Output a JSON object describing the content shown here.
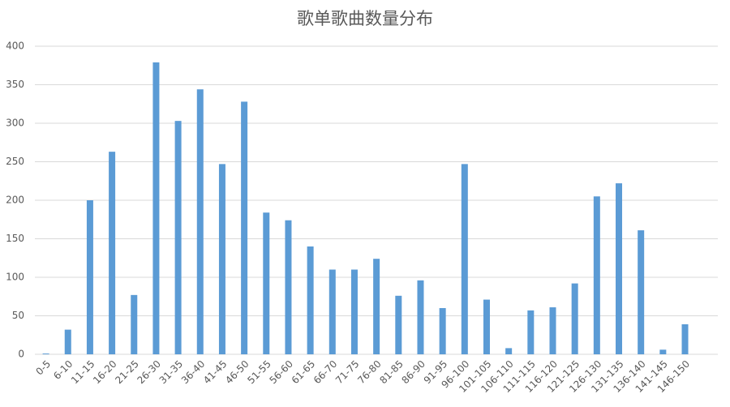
{
  "chart_data": {
    "type": "bar",
    "title": "歌单歌曲数量分布",
    "categories": [
      "0-5",
      "6-10",
      "11-15",
      "16-20",
      "21-25",
      "26-30",
      "31-35",
      "36-40",
      "41-45",
      "46-50",
      "51-55",
      "56-60",
      "61-65",
      "66-70",
      "71-75",
      "76-80",
      "81-85",
      "86-90",
      "91-95",
      "96-100",
      "101-105",
      "106-110",
      "111-115",
      "116-120",
      "121-125",
      "126-130",
      "131-135",
      "136-140",
      "141-145",
      "146-150"
    ],
    "values": [
      1,
      32,
      200,
      263,
      77,
      379,
      303,
      344,
      247,
      328,
      184,
      174,
      140,
      110,
      110,
      124,
      76,
      96,
      60,
      247,
      71,
      8,
      57,
      61,
      92,
      205,
      222,
      161,
      6,
      39
    ],
    "color": "#5b9bd5",
    "ylim": [
      0,
      400
    ],
    "yticks": [
      0,
      50,
      100,
      150,
      200,
      250,
      300,
      350,
      400
    ],
    "grid": true
  }
}
